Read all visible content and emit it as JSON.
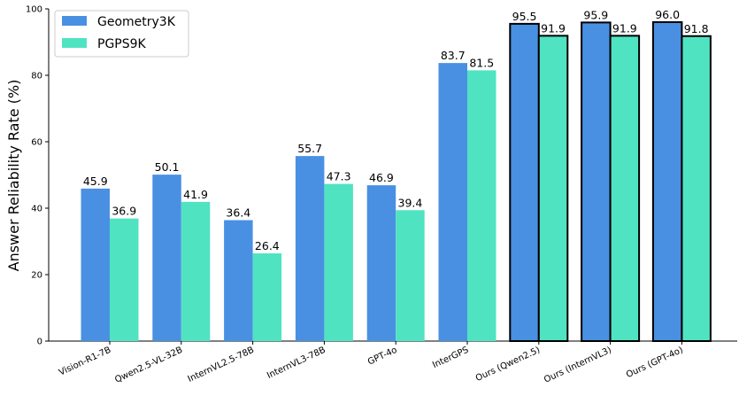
{
  "chart_data": {
    "type": "bar",
    "categories": [
      "Vision-R1-7B",
      "Qwen2.5-VL-32B",
      "InternVL2.5-78B",
      "InternVL3-78B",
      "GPT-4o",
      "InterGPS",
      "Ours (Qwen2.5)",
      "Ours (InternVL3)",
      "Ours (GPT-4o)"
    ],
    "series": [
      {
        "name": "Geometry3K",
        "color": "#4a90e2",
        "values": [
          45.9,
          50.1,
          36.4,
          55.7,
          46.9,
          83.7,
          95.5,
          95.9,
          96.0
        ]
      },
      {
        "name": "PGPS9K",
        "color": "#50e3c2",
        "values": [
          36.9,
          41.9,
          26.4,
          47.3,
          39.4,
          81.5,
          91.9,
          91.9,
          91.8
        ]
      }
    ],
    "value_labels": [
      [
        "45.9",
        "50.1",
        "36.4",
        "55.7",
        "46.9",
        "83.7",
        "95.5",
        "95.9",
        "96.0"
      ],
      [
        "36.9",
        "41.9",
        "26.4",
        "47.3",
        "39.4",
        "81.5",
        "91.9",
        "91.9",
        "91.8"
      ]
    ],
    "highlighted_categories": [
      "Ours (Qwen2.5)",
      "Ours (InternVL3)",
      "Ours (GPT-4o)"
    ],
    "title": "",
    "xlabel": "",
    "ylabel": "Answer Reliability Rate (%)",
    "ylim": [
      0,
      100
    ],
    "yticks": [
      0,
      20,
      40,
      60,
      80,
      100
    ],
    "grid": false,
    "legend_position": "top-left"
  }
}
